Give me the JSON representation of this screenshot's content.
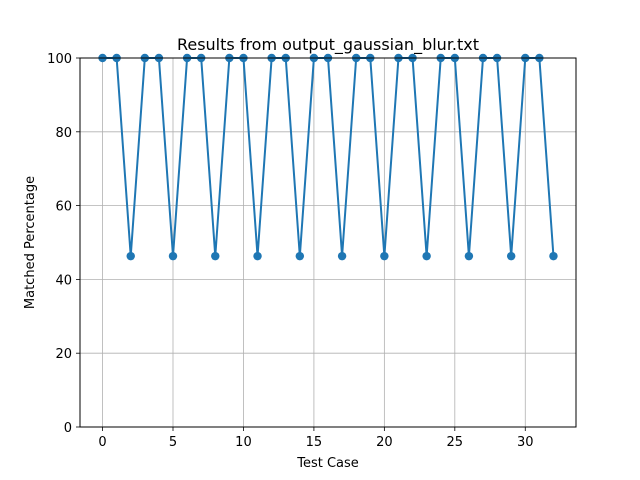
{
  "chart_data": {
    "type": "line",
    "title": "Results from output_gaussian_blur.txt",
    "xlabel": "Test Case",
    "ylabel": "Matched Percentage",
    "xlim": [
      -1.6,
      33.6
    ],
    "ylim": [
      0,
      100
    ],
    "x_ticks": [
      0,
      5,
      10,
      15,
      20,
      25,
      30
    ],
    "y_ticks": [
      0,
      20,
      40,
      60,
      80,
      100
    ],
    "grid": true,
    "marker": "circle",
    "series": [
      {
        "color": "#1f77b4",
        "x": [
          0,
          1,
          2,
          3,
          4,
          5,
          6,
          7,
          8,
          9,
          10,
          11,
          12,
          13,
          14,
          15,
          16,
          17,
          18,
          19,
          20,
          21,
          22,
          23,
          24,
          25,
          26,
          27,
          28,
          29,
          30,
          31,
          32
        ],
        "values": [
          100,
          100,
          46.3,
          100,
          100,
          46.3,
          100,
          100,
          46.3,
          100,
          100,
          46.3,
          100,
          100,
          46.3,
          100,
          100,
          46.3,
          100,
          100,
          46.3,
          100,
          100,
          46.3,
          100,
          100,
          46.3,
          100,
          100,
          46.3,
          100,
          100,
          46.3
        ]
      }
    ]
  }
}
